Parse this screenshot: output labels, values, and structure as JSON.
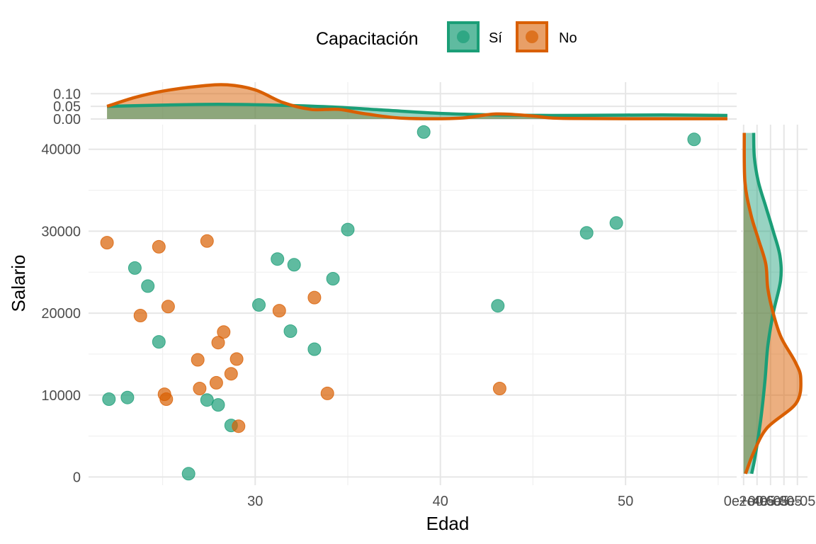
{
  "chart_data": {
    "type": "scatter",
    "xlabel": "Edad",
    "ylabel": "Salario",
    "xlim": [
      21,
      56
    ],
    "ylim": [
      -1000,
      43000
    ],
    "x_ticks": [
      30,
      40,
      50
    ],
    "y_ticks": [
      0,
      10000,
      20000,
      30000,
      40000
    ],
    "grid": true,
    "colors": {
      "si": "#1b9e77",
      "no": "#d95f02"
    },
    "legend": {
      "title": "Capacitación",
      "position": "top",
      "entries": [
        {
          "label": "Sí",
          "key": "si"
        },
        {
          "label": "No",
          "key": "no"
        }
      ]
    },
    "series": [
      {
        "name": "Sí",
        "key": "si",
        "points": [
          [
            39.1,
            42100
          ],
          [
            53.7,
            41200
          ],
          [
            35.0,
            30200
          ],
          [
            49.5,
            31000
          ],
          [
            47.9,
            29800
          ],
          [
            23.5,
            25500
          ],
          [
            31.2,
            26600
          ],
          [
            32.1,
            25900
          ],
          [
            34.2,
            24200
          ],
          [
            24.2,
            23300
          ],
          [
            30.2,
            21000
          ],
          [
            43.1,
            20900
          ],
          [
            31.9,
            17800
          ],
          [
            33.2,
            15600
          ],
          [
            24.8,
            16500
          ],
          [
            22.1,
            9500
          ],
          [
            23.1,
            9700
          ],
          [
            27.4,
            9400
          ],
          [
            28.0,
            8800
          ],
          [
            28.7,
            6300
          ],
          [
            26.4,
            400
          ]
        ]
      },
      {
        "name": "No",
        "key": "no",
        "points": [
          [
            22.0,
            28600
          ],
          [
            24.8,
            28100
          ],
          [
            27.4,
            28800
          ],
          [
            23.8,
            19700
          ],
          [
            25.3,
            20800
          ],
          [
            31.3,
            20300
          ],
          [
            33.2,
            21900
          ],
          [
            28.3,
            17700
          ],
          [
            28.0,
            16400
          ],
          [
            26.9,
            14300
          ],
          [
            29.0,
            14400
          ],
          [
            28.7,
            12600
          ],
          [
            27.9,
            11500
          ],
          [
            27.0,
            10800
          ],
          [
            25.1,
            10100
          ],
          [
            25.2,
            9500
          ],
          [
            33.9,
            10200
          ],
          [
            43.2,
            10800
          ],
          [
            29.1,
            6200
          ]
        ]
      }
    ],
    "top_density": {
      "y_ticks": [
        "0.00",
        "0.05",
        "0.10"
      ],
      "ylim": [
        0,
        0.14
      ],
      "si": [
        [
          22,
          0.05
        ],
        [
          25,
          0.055
        ],
        [
          28,
          0.058
        ],
        [
          31,
          0.055
        ],
        [
          34,
          0.048
        ],
        [
          37,
          0.035
        ],
        [
          40,
          0.022
        ],
        [
          43,
          0.016
        ],
        [
          46,
          0.014
        ],
        [
          49,
          0.015
        ],
        [
          52,
          0.016
        ],
        [
          55.5,
          0.014
        ]
      ],
      "no": [
        [
          22,
          0.05
        ],
        [
          23.5,
          0.085
        ],
        [
          25,
          0.11
        ],
        [
          27,
          0.13
        ],
        [
          28.5,
          0.135
        ],
        [
          30,
          0.115
        ],
        [
          31.5,
          0.065
        ],
        [
          33,
          0.038
        ],
        [
          34.5,
          0.038
        ],
        [
          36,
          0.02
        ],
        [
          38,
          0.003
        ],
        [
          41,
          0.003
        ],
        [
          43,
          0.02
        ],
        [
          45,
          0.012
        ],
        [
          47,
          0.002
        ],
        [
          55.5,
          0.001
        ]
      ]
    },
    "right_density": {
      "x_ticks": [
        "0e+00",
        "2e-05",
        "4e-05",
        "6e-05",
        "8e-05"
      ],
      "xlim": [
        -4e-06,
        9.5e-05
      ],
      "si": [
        [
          400,
          1.2e-05
        ],
        [
          2000,
          1.6e-05
        ],
        [
          5000,
          2.2e-05
        ],
        [
          8000,
          2.7e-05
        ],
        [
          12000,
          3.2e-05
        ],
        [
          16000,
          3.6e-05
        ],
        [
          20000,
          4.4e-05
        ],
        [
          24000,
          5.5e-05
        ],
        [
          27000,
          5.4e-05
        ],
        [
          30000,
          4.4e-05
        ],
        [
          33000,
          3.3e-05
        ],
        [
          36000,
          2.2e-05
        ],
        [
          39000,
          1.6e-05
        ],
        [
          42000,
          1.5e-05
        ]
      ],
      "no": [
        [
          400,
          3e-06
        ],
        [
          3000,
          1.5e-05
        ],
        [
          6000,
          3.5e-05
        ],
        [
          9000,
          7.8e-05
        ],
        [
          12000,
          8.5e-05
        ],
        [
          14000,
          7.7e-05
        ],
        [
          17000,
          5.6e-05
        ],
        [
          20000,
          4.4e-05
        ],
        [
          23000,
          3.6e-05
        ],
        [
          26000,
          3.3e-05
        ],
        [
          29000,
          2.2e-05
        ],
        [
          32000,
          1.1e-05
        ],
        [
          36000,
          2e-06
        ],
        [
          42000,
          1e-06
        ]
      ]
    }
  }
}
